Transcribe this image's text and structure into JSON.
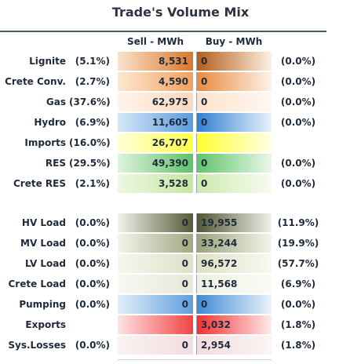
{
  "title": "Trade's Volume Mix",
  "headers": {
    "sell": "Sell - MWh",
    "buy": "Buy - MWh"
  },
  "rows": [
    {
      "label": "Lignite",
      "sell_pct": "(5.1%)",
      "sell": "8,531",
      "buy": "0",
      "buy_pct": "(0.0%)",
      "sell_grad": [
        "#fbe3cc",
        "#d9772a"
      ],
      "buy_grad": [
        "#b35c16",
        "#fdf0e3"
      ]
    },
    {
      "label": "Crete Conv.",
      "sell_pct": "(2.7%)",
      "sell": "4,590",
      "buy": "0",
      "buy_pct": "(0.0%)",
      "sell_grad": [
        "#fde7d2",
        "#f1a15c"
      ],
      "buy_grad": [
        "#e9893d",
        "#fdf2e8"
      ]
    },
    {
      "label": "Gas",
      "sell_pct": "(37.6%)",
      "sell": "62,975",
      "buy": "0",
      "buy_pct": "(0.0%)",
      "sell_grad": [
        "#fff4ec",
        "#fbd9bd"
      ],
      "buy_grad": [
        "#fde2cb",
        "#fff8f2"
      ]
    },
    {
      "label": "Hydro",
      "sell_pct": "(6.9%)",
      "sell": "11,605",
      "buy": "0",
      "buy_pct": "(0.0%)",
      "sell_grad": [
        "#d6e7f7",
        "#5a9bdc"
      ],
      "buy_grad": [
        "#2f7fd0",
        "#e9f2fb"
      ]
    },
    {
      "label": "Imports",
      "sell_pct": "(16.0%)",
      "sell": "26,707",
      "buy": "",
      "buy_pct": "",
      "sell_grad": [
        "#ffffd8",
        "#ffff4a"
      ],
      "buy_grad": [
        "#ffff2e",
        "#ffffe4"
      ]
    },
    {
      "label": "RES",
      "sell_pct": "(29.5%)",
      "sell": "49,390",
      "buy": "0",
      "buy_pct": "(0.0%)",
      "sell_grad": [
        "#dff3df",
        "#5fc167"
      ],
      "buy_grad": [
        "#5ec467",
        "#eaf7ea"
      ]
    },
    {
      "label": "Crete RES",
      "sell_pct": "(2.1%)",
      "sell": "3,528",
      "buy": "0",
      "buy_pct": "(0.0%)",
      "sell_grad": [
        "#eef7e3",
        "#c5e6a3"
      ],
      "buy_grad": [
        "#cde9ad",
        "#f7fbf1"
      ]
    },
    {
      "label": "HV Load",
      "sell_pct": "(0.0%)",
      "sell": "0",
      "buy": "19,955",
      "buy_pct": "(11.9%)",
      "sell_grad": [
        "#f1f3ea",
        "#565b3b"
      ],
      "buy_grad": [
        "#4f5432",
        "#f1f2ea"
      ]
    },
    {
      "label": "MV Load",
      "sell_pct": "(0.0%)",
      "sell": "0",
      "buy": "33,244",
      "buy_pct": "(19.9%)",
      "sell_grad": [
        "#f3f4ec",
        "#a2a780"
      ],
      "buy_grad": [
        "#9aa079",
        "#f3f4ec"
      ]
    },
    {
      "label": "LV Load",
      "sell_pct": "(0.0%)",
      "sell": "0",
      "buy": "96,572",
      "buy_pct": "(57.7%)",
      "sell_grad": [
        "#f6f7ef",
        "#dde1c6"
      ],
      "buy_grad": [
        "#dde2c4",
        "#f7f8f0"
      ]
    },
    {
      "label": "Crete Load",
      "sell_pct": "(0.0%)",
      "sell": "0",
      "buy": "11,568",
      "buy_pct": "(6.9%)",
      "sell_grad": [
        "#f8f8f4",
        "#e6e8d8"
      ],
      "buy_grad": [
        "#eef0e2",
        "#fbfbf7"
      ]
    },
    {
      "label": "Pumping",
      "sell_pct": "(0.0%)",
      "sell": "0",
      "buy": "0",
      "buy_pct": "(0.0%)",
      "sell_grad": [
        "#e2eef9",
        "#5f9fde"
      ],
      "buy_grad": [
        "#3e8ad4",
        "#eaf2fb"
      ]
    },
    {
      "label": "Exports",
      "sell_pct": "",
      "sell": "",
      "buy": "3,032",
      "buy_pct": "(1.8%)",
      "sell_grad": [
        "#fde4e4",
        "#f24343"
      ],
      "buy_grad": [
        "#f22e2e",
        "#fdeaea"
      ]
    },
    {
      "label": "Sys.Losses",
      "sell_pct": "(0.0%)",
      "sell": "0",
      "buy": "2,954",
      "buy_pct": "(1.8%)",
      "sell_grad": [
        "#faf2f2",
        "#f3dede"
      ],
      "buy_grad": [
        "#f4dcdc",
        "#fbf5f5"
      ]
    }
  ]
}
